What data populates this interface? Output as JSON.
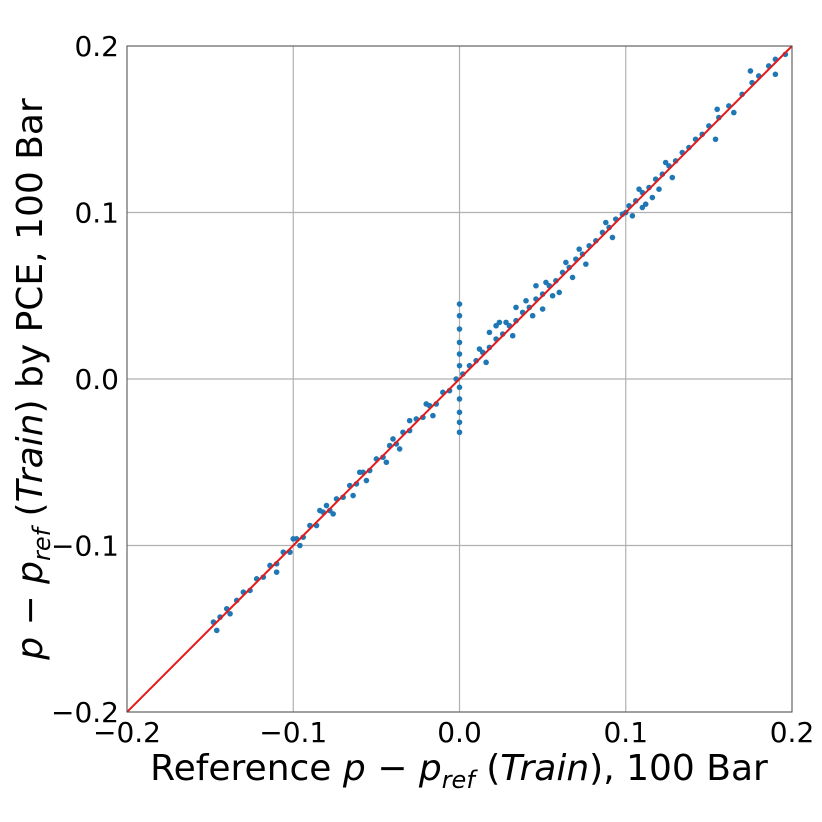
{
  "chart_data": {
    "type": "scatter",
    "xlabel": {
      "prefix": "Reference ",
      "math_p": "p",
      "math_minus": " − ",
      "math_p2": "p",
      "math_sub": "ref",
      "paren_open": " (",
      "math_italic": "Train",
      "paren_close": ")",
      "suffix": ", 100 Bar"
    },
    "ylabel": {
      "math_p": "p",
      "math_minus": " − ",
      "math_p2": "p",
      "math_sub": "ref",
      "paren_open": " (",
      "math_italic": "Train",
      "paren_close": ")",
      "suffix": " by PCE, 100 Bar"
    },
    "xlim": [
      -0.2,
      0.2
    ],
    "ylim": [
      -0.2,
      0.2
    ],
    "xticks": [
      -0.2,
      -0.1,
      0.0,
      0.1,
      0.2
    ],
    "yticks": [
      -0.2,
      -0.1,
      0.0,
      0.1,
      0.2
    ],
    "xtick_labels": [
      "−0.2",
      "−0.1",
      "0.0",
      "0.1",
      "0.2"
    ],
    "ytick_labels": [
      "−0.2",
      "−0.1",
      "0.0",
      "0.1",
      "0.2"
    ],
    "grid": true,
    "legend": "none",
    "point_color": "#1f77b4",
    "line_color": "#e41a1c",
    "reference_line": {
      "x": [
        -0.2,
        0.2
      ],
      "y": [
        -0.2,
        0.2
      ]
    },
    "points": [
      [
        -0.148,
        -0.146
      ],
      [
        -0.146,
        -0.151
      ],
      [
        -0.144,
        -0.143
      ],
      [
        -0.14,
        -0.138
      ],
      [
        -0.138,
        -0.141
      ],
      [
        -0.134,
        -0.133
      ],
      [
        -0.13,
        -0.128
      ],
      [
        -0.126,
        -0.127
      ],
      [
        -0.122,
        -0.12
      ],
      [
        -0.118,
        -0.119
      ],
      [
        -0.114,
        -0.112
      ],
      [
        -0.11,
        -0.111
      ],
      [
        -0.106,
        -0.104
      ],
      [
        -0.102,
        -0.104
      ],
      [
        -0.098,
        -0.096
      ],
      [
        -0.094,
        -0.095
      ],
      [
        -0.09,
        -0.088
      ],
      [
        -0.086,
        -0.088
      ],
      [
        -0.082,
        -0.08
      ],
      [
        -0.078,
        -0.079
      ],
      [
        -0.074,
        -0.072
      ],
      [
        -0.07,
        -0.071
      ],
      [
        -0.066,
        -0.064
      ],
      [
        -0.062,
        -0.063
      ],
      [
        -0.058,
        -0.056
      ],
      [
        -0.054,
        -0.055
      ],
      [
        -0.05,
        -0.048
      ],
      [
        -0.046,
        -0.047
      ],
      [
        -0.042,
        -0.04
      ],
      [
        -0.038,
        -0.039
      ],
      [
        -0.034,
        -0.032
      ],
      [
        -0.03,
        -0.031
      ],
      [
        -0.026,
        -0.024
      ],
      [
        -0.022,
        -0.023
      ],
      [
        -0.018,
        -0.016
      ],
      [
        -0.014,
        -0.015
      ],
      [
        -0.01,
        -0.008
      ],
      [
        -0.006,
        -0.007
      ],
      [
        -0.002,
        0.0
      ],
      [
        0.002,
        0.003
      ],
      [
        0.006,
        0.008
      ],
      [
        0.01,
        0.011
      ],
      [
        0.014,
        0.016
      ],
      [
        0.018,
        0.019
      ],
      [
        0.022,
        0.024
      ],
      [
        0.026,
        0.027
      ],
      [
        0.03,
        0.032
      ],
      [
        0.034,
        0.035
      ],
      [
        0.038,
        0.04
      ],
      [
        0.042,
        0.043
      ],
      [
        0.046,
        0.048
      ],
      [
        0.05,
        0.051
      ],
      [
        0.054,
        0.056
      ],
      [
        0.058,
        0.059
      ],
      [
        0.062,
        0.064
      ],
      [
        0.066,
        0.067
      ],
      [
        0.07,
        0.072
      ],
      [
        0.074,
        0.075
      ],
      [
        0.078,
        0.08
      ],
      [
        0.082,
        0.083
      ],
      [
        0.086,
        0.088
      ],
      [
        0.09,
        0.091
      ],
      [
        0.094,
        0.096
      ],
      [
        0.098,
        0.099
      ],
      [
        0.102,
        0.104
      ],
      [
        0.106,
        0.107
      ],
      [
        0.11,
        0.112
      ],
      [
        0.114,
        0.115
      ],
      [
        0.118,
        0.12
      ],
      [
        0.122,
        0.123
      ],
      [
        0.126,
        0.128
      ],
      [
        0.13,
        0.131
      ],
      [
        0.134,
        0.136
      ],
      [
        0.138,
        0.139
      ],
      [
        0.142,
        0.144
      ],
      [
        0.146,
        0.147
      ],
      [
        0.15,
        0.152
      ],
      [
        0.156,
        0.157
      ],
      [
        0.162,
        0.164
      ],
      [
        0.17,
        0.171
      ],
      [
        0.176,
        0.178
      ],
      [
        0.18,
        0.182
      ],
      [
        0.186,
        0.188
      ],
      [
        0.19,
        0.192
      ],
      [
        0.196,
        0.195
      ],
      [
        -0.1,
        -0.096
      ],
      [
        -0.096,
        -0.1
      ],
      [
        -0.08,
        -0.076
      ],
      [
        -0.076,
        -0.081
      ],
      [
        -0.06,
        -0.056
      ],
      [
        -0.056,
        -0.061
      ],
      [
        -0.04,
        -0.036
      ],
      [
        -0.036,
        -0.042
      ],
      [
        -0.02,
        -0.015
      ],
      [
        -0.016,
        -0.022
      ],
      [
        0.012,
        0.018
      ],
      [
        0.016,
        0.01
      ],
      [
        0.028,
        0.034
      ],
      [
        0.032,
        0.026
      ],
      [
        0.04,
        0.047
      ],
      [
        0.044,
        0.038
      ],
      [
        0.052,
        0.058
      ],
      [
        0.056,
        0.05
      ],
      [
        0.064,
        0.07
      ],
      [
        0.068,
        0.061
      ],
      [
        0.072,
        0.078
      ],
      [
        0.076,
        0.069
      ],
      [
        0.088,
        0.094
      ],
      [
        0.092,
        0.085
      ],
      [
        0.108,
        0.114
      ],
      [
        0.112,
        0.105
      ],
      [
        0.124,
        0.13
      ],
      [
        0.128,
        0.121
      ],
      [
        0.018,
        0.028
      ],
      [
        0.022,
        0.032
      ],
      [
        0.024,
        0.034
      ],
      [
        0.034,
        0.043
      ],
      [
        0.046,
        0.056
      ],
      [
        0.05,
        0.042
      ],
      [
        0.06,
        0.052
      ],
      [
        -0.03,
        -0.025
      ],
      [
        -0.044,
        -0.05
      ],
      [
        -0.064,
        -0.07
      ],
      [
        -0.084,
        -0.079
      ],
      [
        -0.11,
        -0.116
      ],
      [
        0.0,
        0.045
      ],
      [
        0.0,
        0.038
      ],
      [
        0.0,
        0.03
      ],
      [
        0.0,
        0.022
      ],
      [
        0.0,
        0.015
      ],
      [
        0.0,
        0.008
      ],
      [
        0.0,
        -0.005
      ],
      [
        0.0,
        -0.012
      ],
      [
        0.0,
        -0.02
      ],
      [
        0.0,
        -0.026
      ],
      [
        0.0,
        -0.032
      ],
      [
        0.1,
        0.1
      ],
      [
        0.104,
        0.098
      ],
      [
        0.11,
        0.103
      ],
      [
        0.116,
        0.109
      ],
      [
        0.12,
        0.114
      ],
      [
        0.155,
        0.162
      ],
      [
        0.165,
        0.16
      ],
      [
        0.175,
        0.185
      ],
      [
        0.19,
        0.183
      ],
      [
        0.154,
        0.144
      ]
    ]
  }
}
